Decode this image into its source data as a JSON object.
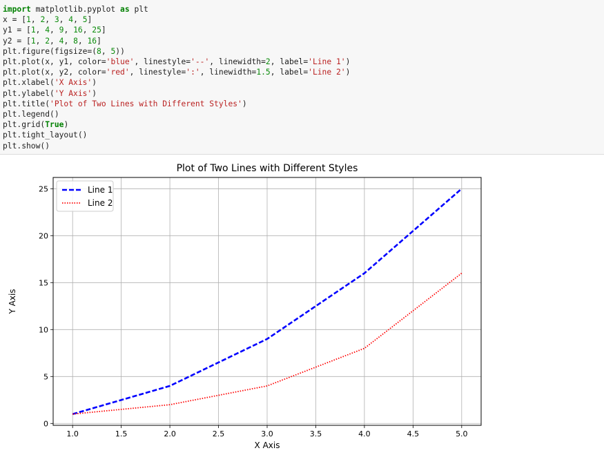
{
  "code_cell": {
    "lines": [
      [
        {
          "t": "import",
          "c": "kw"
        },
        {
          "t": " matplotlib.pyplot "
        },
        {
          "t": "as",
          "c": "kw"
        },
        {
          "t": " plt"
        }
      ],
      [
        {
          "t": "x = ["
        },
        {
          "t": "1",
          "c": "num"
        },
        {
          "t": ", "
        },
        {
          "t": "2",
          "c": "num"
        },
        {
          "t": ", "
        },
        {
          "t": "3",
          "c": "num"
        },
        {
          "t": ", "
        },
        {
          "t": "4",
          "c": "num"
        },
        {
          "t": ", "
        },
        {
          "t": "5",
          "c": "num"
        },
        {
          "t": "]"
        }
      ],
      [
        {
          "t": "y1 = ["
        },
        {
          "t": "1",
          "c": "num"
        },
        {
          "t": ", "
        },
        {
          "t": "4",
          "c": "num"
        },
        {
          "t": ", "
        },
        {
          "t": "9",
          "c": "num"
        },
        {
          "t": ", "
        },
        {
          "t": "16",
          "c": "num"
        },
        {
          "t": ", "
        },
        {
          "t": "25",
          "c": "num"
        },
        {
          "t": "]"
        }
      ],
      [
        {
          "t": "y2 = ["
        },
        {
          "t": "1",
          "c": "num"
        },
        {
          "t": ", "
        },
        {
          "t": "2",
          "c": "num"
        },
        {
          "t": ", "
        },
        {
          "t": "4",
          "c": "num"
        },
        {
          "t": ", "
        },
        {
          "t": "8",
          "c": "num"
        },
        {
          "t": ", "
        },
        {
          "t": "16",
          "c": "num"
        },
        {
          "t": "]"
        }
      ],
      [
        {
          "t": "plt.figure(figsize=("
        },
        {
          "t": "8",
          "c": "num"
        },
        {
          "t": ", "
        },
        {
          "t": "5",
          "c": "num"
        },
        {
          "t": "))"
        }
      ],
      [
        {
          "t": "plt.plot(x, y1, color="
        },
        {
          "t": "'blue'",
          "c": "str"
        },
        {
          "t": ", linestyle="
        },
        {
          "t": "'--'",
          "c": "str"
        },
        {
          "t": ", linewidth="
        },
        {
          "t": "2",
          "c": "num"
        },
        {
          "t": ", label="
        },
        {
          "t": "'Line 1'",
          "c": "str"
        },
        {
          "t": ")"
        }
      ],
      [
        {
          "t": "plt.plot(x, y2, color="
        },
        {
          "t": "'red'",
          "c": "str"
        },
        {
          "t": ", linestyle="
        },
        {
          "t": "':'",
          "c": "str"
        },
        {
          "t": ", linewidth="
        },
        {
          "t": "1.5",
          "c": "num"
        },
        {
          "t": ", label="
        },
        {
          "t": "'Line 2'",
          "c": "str"
        },
        {
          "t": ")"
        }
      ],
      [
        {
          "t": "plt.xlabel("
        },
        {
          "t": "'X Axis'",
          "c": "str"
        },
        {
          "t": ")"
        }
      ],
      [
        {
          "t": "plt.ylabel("
        },
        {
          "t": "'Y Axis'",
          "c": "str"
        },
        {
          "t": ")"
        }
      ],
      [
        {
          "t": "plt.title("
        },
        {
          "t": "'Plot of Two Lines with Different Styles'",
          "c": "str"
        },
        {
          "t": ")"
        }
      ],
      [
        {
          "t": "plt.legend()"
        }
      ],
      [
        {
          "t": "plt.grid("
        },
        {
          "t": "True",
          "c": "kw"
        },
        {
          "t": ")"
        }
      ],
      [
        {
          "t": "plt.tight_layout()"
        }
      ],
      [
        {
          "t": "plt.show()"
        }
      ]
    ]
  },
  "chart_data": {
    "type": "line",
    "title": "Plot of Two Lines with Different Styles",
    "xlabel": "X Axis",
    "ylabel": "Y Axis",
    "x": [
      1,
      2,
      3,
      4,
      5
    ],
    "series": [
      {
        "name": "Line 1",
        "values": [
          1,
          4,
          9,
          16,
          25
        ],
        "color": "#0000ff",
        "linestyle": "dashed"
      },
      {
        "name": "Line 2",
        "values": [
          1,
          2,
          4,
          8,
          16
        ],
        "color": "#ff0000",
        "linestyle": "dotted"
      }
    ],
    "xticks": [
      "1.0",
      "1.5",
      "2.0",
      "2.5",
      "3.0",
      "3.5",
      "4.0",
      "4.5",
      "5.0"
    ],
    "yticks": [
      "0",
      "5",
      "10",
      "15",
      "20",
      "25"
    ],
    "xlim": [
      0.8,
      5.2
    ],
    "ylim": [
      -0.2,
      26.2
    ],
    "grid": true,
    "legend_position": "upper-left"
  }
}
